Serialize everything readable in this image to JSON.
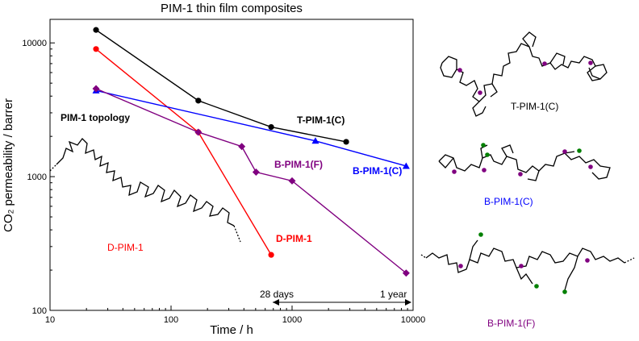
{
  "chart_data": {
    "type": "line",
    "title": "PIM-1 thin film composites",
    "xlabel": "Time / h",
    "ylabel": "CO₂ permeability / barrer",
    "xscale": "log",
    "yscale": "log",
    "xlim": [
      10,
      10000
    ],
    "ylim": [
      100,
      15000
    ],
    "x_ticks": [
      "10",
      "100",
      "1000",
      "10000"
    ],
    "y_ticks": [
      "100",
      "1000",
      "10000"
    ],
    "series": [
      {
        "name": "T-PIM-1(C)",
        "color": "#000000",
        "marker": "circle",
        "points": [
          [
            24,
            12500
          ],
          [
            168,
            3700
          ],
          [
            672,
            2350
          ],
          [
            2800,
            1820
          ]
        ]
      },
      {
        "name": "D-PIM-1",
        "color": "#ff0000",
        "marker": "circle",
        "points": [
          [
            24,
            9000
          ],
          [
            168,
            2150
          ],
          [
            672,
            260
          ]
        ]
      },
      {
        "name": "B-PIM-1(C)",
        "color": "#0000ff",
        "marker": "triangle",
        "points": [
          [
            24,
            4400
          ],
          [
            1560,
            1850
          ],
          [
            8760,
            1200
          ]
        ]
      },
      {
        "name": "B-PIM-1(F)",
        "color": "#800080",
        "marker": "diamond",
        "points": [
          [
            24,
            4550
          ],
          [
            168,
            2150
          ],
          [
            384,
            1680
          ],
          [
            504,
            1080
          ],
          [
            1000,
            930
          ],
          [
            8760,
            190
          ]
        ]
      }
    ],
    "annotations": {
      "topology_label": "PIM-1 topology",
      "range_28days": "28 days",
      "range_1year": "1 year"
    },
    "structure_labels": [
      "T-PIM-1(C)",
      "B-PIM-1(C)",
      "B-PIM-1(F)"
    ],
    "colors": {
      "branch_point": "#800080",
      "end_group": "#008000"
    }
  }
}
